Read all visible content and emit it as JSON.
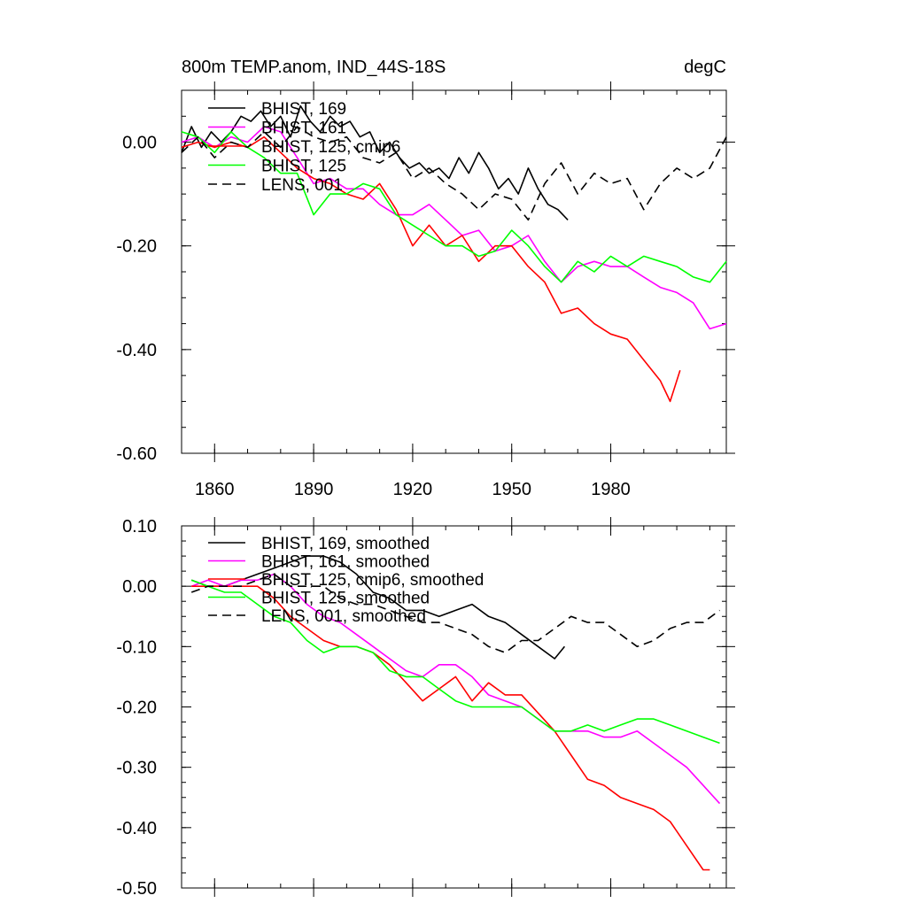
{
  "colors": {
    "BHIST_169": "#000000",
    "BHIST_161": "#ff00ff",
    "BHIST_125_cmip6": "#ff0000",
    "BHIST_125": "#00ff00",
    "LENS_001": "#000000"
  },
  "chart_data": [
    {
      "type": "line",
      "title": "800m TEMP.anom, IND_44S-18S",
      "units": "degC",
      "xlim": [
        1850,
        2015
      ],
      "ylim": [
        -0.6,
        0.1
      ],
      "xticks": [
        1860,
        1890,
        1920,
        1950,
        1980
      ],
      "xtick_labels": [
        "1860",
        "1890",
        "1920",
        "1950",
        "1980"
      ],
      "yticks": [
        0.0,
        -0.2,
        -0.4,
        -0.6
      ],
      "ytick_labels": [
        "0.00",
        "-0.20",
        "-0.40",
        "-0.60"
      ],
      "legend_position": "top-left",
      "series": [
        {
          "name": "BHIST, 169",
          "color": "#000000",
          "dash": "solid",
          "x": [
            1850,
            1853,
            1856,
            1859,
            1862,
            1865,
            1868,
            1871,
            1874,
            1877,
            1880,
            1883,
            1886,
            1889,
            1892,
            1895,
            1898,
            1901,
            1904,
            1907,
            1910,
            1913,
            1916,
            1919,
            1922,
            1925,
            1928,
            1931,
            1934,
            1937,
            1940,
            1943,
            1946,
            1949,
            1952,
            1955,
            1958,
            1961,
            1964,
            1967
          ],
          "y": [
            -0.02,
            0.03,
            -0.01,
            0.02,
            0.0,
            0.02,
            0.05,
            0.04,
            0.06,
            0.03,
            0.05,
            0.01,
            0.07,
            0.04,
            0.02,
            0.05,
            0.03,
            0.04,
            0.01,
            0.02,
            -0.02,
            0.0,
            -0.03,
            -0.05,
            -0.04,
            -0.06,
            -0.05,
            -0.07,
            -0.03,
            -0.06,
            -0.02,
            -0.05,
            -0.09,
            -0.07,
            -0.1,
            -0.05,
            -0.09,
            -0.12,
            -0.13,
            -0.15
          ]
        },
        {
          "name": "BHIST, 161",
          "color": "#ff00ff",
          "dash": "solid",
          "x": [
            1850,
            1855,
            1860,
            1865,
            1870,
            1875,
            1880,
            1885,
            1890,
            1895,
            1900,
            1905,
            1910,
            1915,
            1920,
            1925,
            1930,
            1935,
            1940,
            1945,
            1950,
            1955,
            1960,
            1965,
            1970,
            1975,
            1980,
            1985,
            1990,
            1995,
            2000,
            2005,
            2010,
            2015
          ],
          "y": [
            0.0,
            0.01,
            -0.01,
            0.01,
            0.0,
            0.03,
            0.02,
            -0.03,
            -0.08,
            -0.07,
            -0.09,
            -0.09,
            -0.12,
            -0.14,
            -0.14,
            -0.12,
            -0.15,
            -0.18,
            -0.17,
            -0.21,
            -0.2,
            -0.18,
            -0.23,
            -0.27,
            -0.24,
            -0.23,
            -0.24,
            -0.24,
            -0.26,
            -0.28,
            -0.29,
            -0.31,
            -0.36,
            -0.35
          ]
        },
        {
          "name": "BHIST, 125, cmip6",
          "color": "#ff0000",
          "dash": "solid",
          "x": [
            1850,
            1855,
            1860,
            1865,
            1870,
            1875,
            1880,
            1885,
            1890,
            1895,
            1900,
            1905,
            1910,
            1915,
            1920,
            1925,
            1930,
            1935,
            1940,
            1945,
            1950,
            1955,
            1960,
            1965,
            1970,
            1975,
            1980,
            1985,
            1990,
            1995,
            1998,
            2001
          ],
          "y": [
            -0.01,
            0.0,
            -0.01,
            0.0,
            -0.01,
            0.01,
            -0.02,
            -0.05,
            -0.07,
            -0.08,
            -0.1,
            -0.11,
            -0.08,
            -0.13,
            -0.2,
            -0.16,
            -0.2,
            -0.18,
            -0.23,
            -0.2,
            -0.2,
            -0.24,
            -0.27,
            -0.33,
            -0.32,
            -0.35,
            -0.37,
            -0.38,
            -0.42,
            -0.46,
            -0.5,
            -0.44
          ]
        },
        {
          "name": "BHIST, 125",
          "color": "#00ff00",
          "dash": "solid",
          "x": [
            1850,
            1855,
            1860,
            1865,
            1870,
            1875,
            1880,
            1885,
            1890,
            1895,
            1900,
            1905,
            1910,
            1915,
            1920,
            1925,
            1930,
            1935,
            1940,
            1945,
            1950,
            1955,
            1960,
            1965,
            1970,
            1975,
            1980,
            1985,
            1990,
            1995,
            2000,
            2005,
            2010,
            2015
          ],
          "y": [
            0.02,
            0.01,
            -0.02,
            0.02,
            -0.01,
            -0.03,
            -0.06,
            -0.06,
            -0.14,
            -0.1,
            -0.1,
            -0.08,
            -0.09,
            -0.14,
            -0.16,
            -0.18,
            -0.2,
            -0.2,
            -0.22,
            -0.21,
            -0.17,
            -0.2,
            -0.24,
            -0.27,
            -0.23,
            -0.25,
            -0.22,
            -0.24,
            -0.22,
            -0.23,
            -0.24,
            -0.26,
            -0.27,
            -0.23
          ]
        },
        {
          "name": "LENS, 001",
          "color": "#000000",
          "dash": "dashed",
          "x": [
            1850,
            1855,
            1860,
            1865,
            1870,
            1875,
            1880,
            1885,
            1890,
            1895,
            1900,
            1905,
            1910,
            1915,
            1920,
            1925,
            1930,
            1935,
            1940,
            1945,
            1950,
            1955,
            1960,
            1965,
            1970,
            1975,
            1980,
            1985,
            1990,
            1995,
            2000,
            2005,
            2010,
            2015
          ],
          "y": [
            -0.02,
            0.01,
            -0.03,
            0.0,
            -0.01,
            0.02,
            -0.01,
            0.03,
            0.01,
            0.0,
            0.01,
            -0.03,
            -0.04,
            -0.02,
            -0.07,
            -0.05,
            -0.08,
            -0.1,
            -0.13,
            -0.1,
            -0.11,
            -0.15,
            -0.08,
            -0.04,
            -0.1,
            -0.06,
            -0.08,
            -0.07,
            -0.13,
            -0.08,
            -0.05,
            -0.07,
            -0.05,
            0.01
          ]
        }
      ]
    },
    {
      "type": "line",
      "title": "",
      "units": "",
      "xlim": [
        1850,
        2015
      ],
      "ylim": [
        -0.5,
        0.1
      ],
      "xticks": [
        1860,
        1890,
        1920,
        1950,
        1980
      ],
      "xtick_labels": [],
      "yticks": [
        0.1,
        0.0,
        -0.1,
        -0.2,
        -0.3,
        -0.4,
        -0.5
      ],
      "ytick_labels": [
        "0.10",
        "0.00",
        "-0.10",
        "-0.20",
        "-0.30",
        "-0.40",
        "-0.50"
      ],
      "legend_position": "top-left",
      "series": [
        {
          "name": "BHIST, 169, smoothed",
          "color": "#000000",
          "dash": "solid",
          "x": [
            1853,
            1858,
            1863,
            1868,
            1873,
            1878,
            1883,
            1888,
            1893,
            1898,
            1903,
            1908,
            1913,
            1918,
            1923,
            1928,
            1933,
            1938,
            1943,
            1948,
            1953,
            1958,
            1963,
            1966
          ],
          "y": [
            0.01,
            0.0,
            0.0,
            0.01,
            0.02,
            0.03,
            0.04,
            0.05,
            0.05,
            0.04,
            0.02,
            -0.01,
            -0.02,
            -0.04,
            -0.04,
            -0.05,
            -0.04,
            -0.03,
            -0.05,
            -0.06,
            -0.08,
            -0.1,
            -0.12,
            -0.1
          ]
        },
        {
          "name": "BHIST, 161, smoothed",
          "color": "#ff00ff",
          "dash": "solid",
          "x": [
            1853,
            1858,
            1863,
            1868,
            1873,
            1878,
            1883,
            1888,
            1893,
            1898,
            1903,
            1908,
            1913,
            1918,
            1923,
            1928,
            1933,
            1938,
            1943,
            1948,
            1953,
            1958,
            1963,
            1968,
            1973,
            1978,
            1983,
            1988,
            1993,
            1998,
            2003,
            2008,
            2013
          ],
          "y": [
            0.0,
            0.01,
            0.0,
            0.01,
            0.01,
            0.02,
            0.0,
            -0.03,
            -0.05,
            -0.06,
            -0.08,
            -0.1,
            -0.12,
            -0.14,
            -0.15,
            -0.13,
            -0.13,
            -0.15,
            -0.18,
            -0.19,
            -0.2,
            -0.22,
            -0.24,
            -0.24,
            -0.24,
            -0.25,
            -0.25,
            -0.24,
            -0.26,
            -0.28,
            -0.3,
            -0.33,
            -0.36
          ]
        },
        {
          "name": "BHIST, 125, cmip6, smoothed",
          "color": "#ff0000",
          "dash": "solid",
          "x": [
            1853,
            1858,
            1863,
            1868,
            1873,
            1878,
            1883,
            1888,
            1893,
            1898,
            1903,
            1908,
            1913,
            1918,
            1923,
            1928,
            1933,
            1938,
            1943,
            1948,
            1953,
            1958,
            1963,
            1968,
            1973,
            1978,
            1983,
            1988,
            1993,
            1998,
            2003,
            2008,
            2010
          ],
          "y": [
            0.0,
            0.0,
            0.0,
            0.0,
            0.0,
            -0.02,
            -0.05,
            -0.07,
            -0.09,
            -0.1,
            -0.1,
            -0.11,
            -0.13,
            -0.16,
            -0.19,
            -0.17,
            -0.15,
            -0.19,
            -0.16,
            -0.18,
            -0.18,
            -0.21,
            -0.24,
            -0.28,
            -0.32,
            -0.33,
            -0.35,
            -0.36,
            -0.37,
            -0.39,
            -0.43,
            -0.47,
            -0.47
          ]
        },
        {
          "name": "BHIST, 125, smoothed",
          "color": "#00ff00",
          "dash": "solid",
          "x": [
            1853,
            1858,
            1863,
            1868,
            1873,
            1878,
            1883,
            1888,
            1893,
            1898,
            1903,
            1908,
            1913,
            1918,
            1923,
            1928,
            1933,
            1938,
            1943,
            1948,
            1953,
            1958,
            1963,
            1968,
            1973,
            1978,
            1983,
            1988,
            1993,
            1998,
            2003,
            2008,
            2013
          ],
          "y": [
            0.01,
            0.0,
            -0.01,
            -0.01,
            -0.03,
            -0.05,
            -0.06,
            -0.09,
            -0.11,
            -0.1,
            -0.1,
            -0.11,
            -0.14,
            -0.15,
            -0.15,
            -0.17,
            -0.19,
            -0.2,
            -0.2,
            -0.2,
            -0.2,
            -0.22,
            -0.24,
            -0.24,
            -0.23,
            -0.24,
            -0.23,
            -0.22,
            -0.22,
            -0.23,
            -0.24,
            -0.25,
            -0.26
          ]
        },
        {
          "name": "LENS, 001, smoothed",
          "color": "#000000",
          "dash": "dashed",
          "x": [
            1853,
            1858,
            1863,
            1868,
            1873,
            1878,
            1883,
            1888,
            1893,
            1898,
            1903,
            1908,
            1913,
            1918,
            1923,
            1928,
            1933,
            1938,
            1943,
            1948,
            1953,
            1958,
            1963,
            1968,
            1973,
            1978,
            1983,
            1988,
            1993,
            1998,
            2003,
            2008,
            2013
          ],
          "y": [
            -0.01,
            0.0,
            0.0,
            0.0,
            0.01,
            0.02,
            0.0,
            0.0,
            0.0,
            -0.02,
            -0.03,
            -0.03,
            -0.04,
            -0.05,
            -0.06,
            -0.06,
            -0.07,
            -0.08,
            -0.1,
            -0.11,
            -0.09,
            -0.09,
            -0.07,
            -0.05,
            -0.06,
            -0.06,
            -0.08,
            -0.1,
            -0.09,
            -0.07,
            -0.06,
            -0.06,
            -0.04
          ]
        }
      ]
    }
  ]
}
